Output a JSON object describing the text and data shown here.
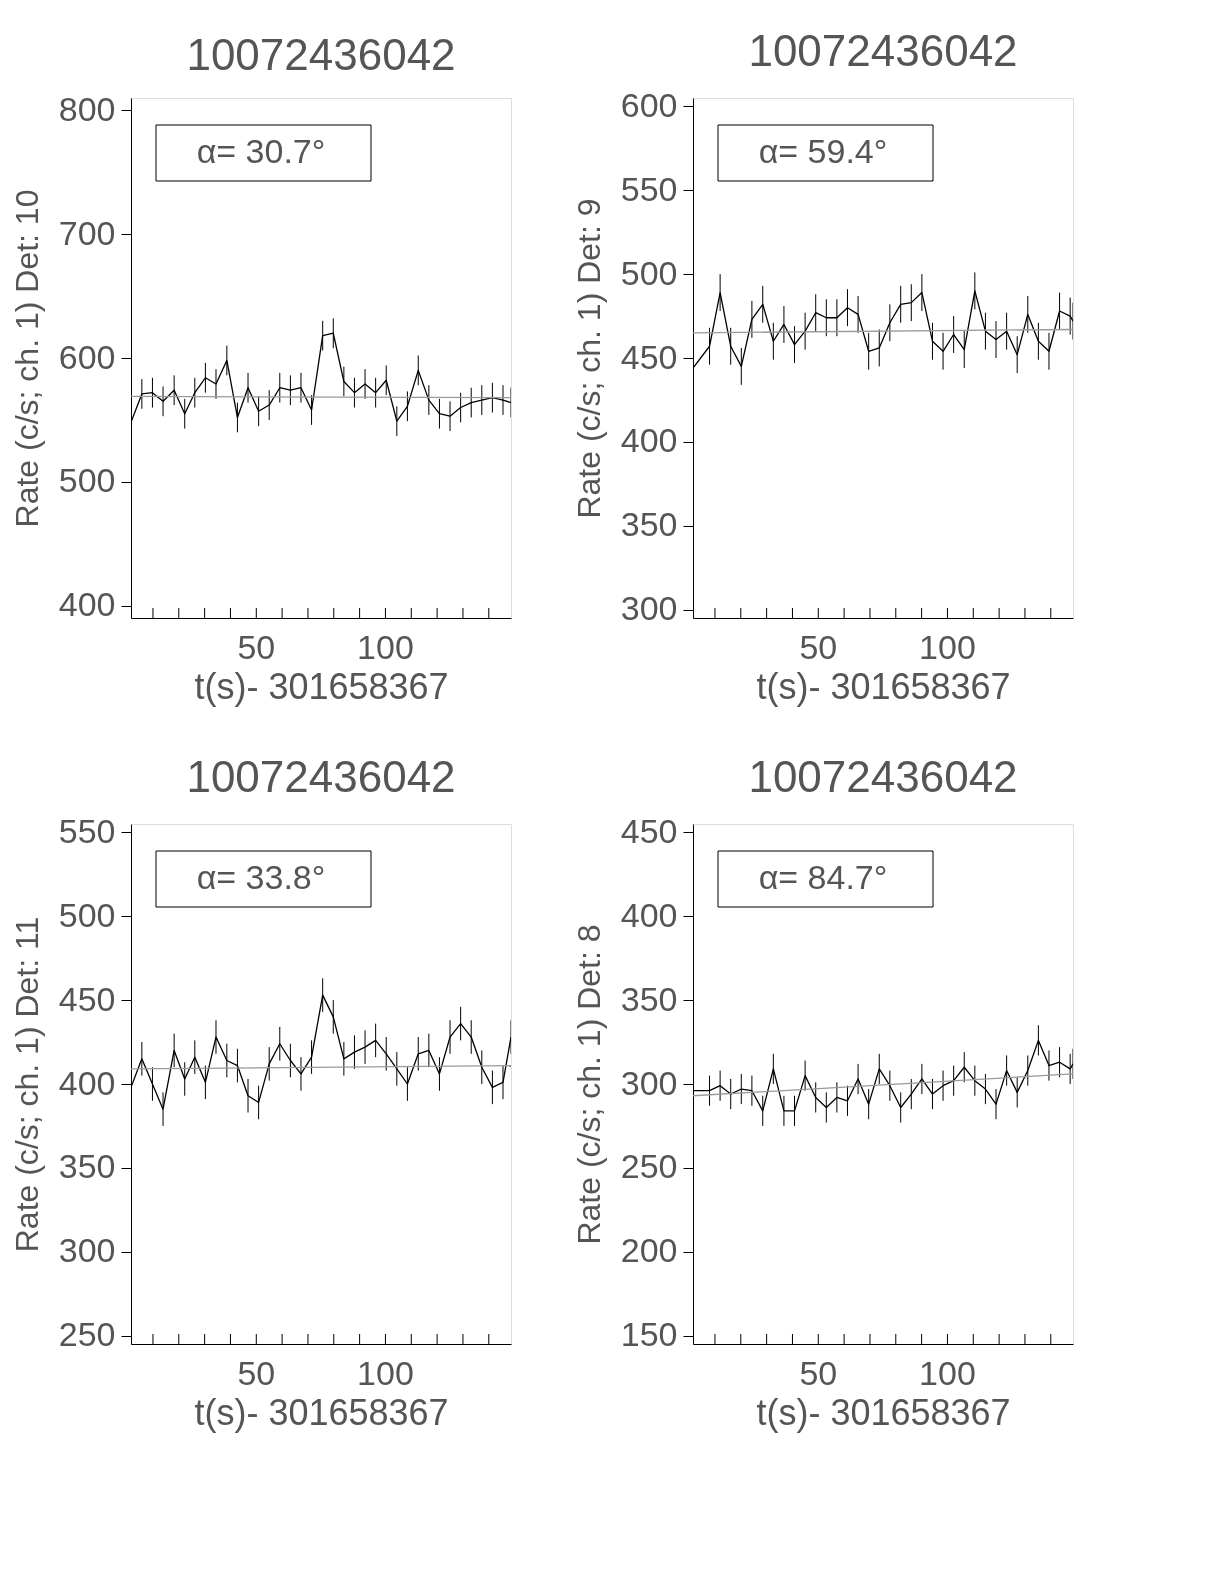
{
  "chart_data": [
    {
      "type": "line",
      "title": "10072436042",
      "xlabel": "t(s)- 301658367",
      "ylabel": "Rate (c/s; ch. 1) Det: 10",
      "annotations": [
        "α= 30.7°"
      ],
      "xlim": [
        1.5,
        148.6
      ],
      "ylim": [
        390,
        810
      ],
      "xticks": [
        {
          "value": 10,
          "label": null
        },
        {
          "value": 20,
          "label": null
        },
        {
          "value": 30,
          "label": null
        },
        {
          "value": 40,
          "label": null
        },
        50,
        {
          "value": 60,
          "label": null
        },
        {
          "value": 70,
          "label": null
        },
        {
          "value": 80,
          "label": null
        },
        {
          "value": 90,
          "label": null
        },
        100,
        {
          "value": 110,
          "label": null
        },
        {
          "value": 120,
          "label": null
        },
        {
          "value": 130,
          "label": null
        },
        {
          "value": 140,
          "label": null
        }
      ],
      "yticks": [
        400,
        500,
        600,
        700,
        800
      ],
      "series": [
        {
          "color": "#000000",
          "x": [
            1.5,
            5.7,
            9.8,
            13.9,
            18.2,
            22.3,
            26.2,
            30.3,
            34.4,
            38.6,
            42.7,
            46.8,
            50.9,
            55.0,
            59.1,
            63.2,
            67.3,
            71.4,
            75.7,
            79.8,
            83.9,
            88.0,
            92.1,
            96.2,
            100.3,
            104.4,
            108.5,
            112.7,
            116.8,
            120.9,
            125.0,
            129.1,
            133.2,
            137.3,
            141.4,
            145.5,
            148.6
          ],
          "values": [
            548,
            571,
            572,
            565,
            574,
            555,
            572,
            584,
            579,
            598,
            552,
            576,
            557,
            562,
            576,
            574,
            576,
            558,
            618,
            620,
            581,
            572,
            579,
            572,
            582,
            549,
            561,
            590,
            566,
            555,
            553,
            560,
            564,
            566,
            568,
            566,
            564
          ],
          "errors": [
            12,
            12,
            12,
            12,
            12,
            12,
            12,
            12,
            12,
            12,
            12,
            12,
            12,
            12,
            12,
            12,
            12,
            12,
            12,
            12,
            12,
            12,
            12,
            12,
            12,
            12,
            12,
            12,
            12,
            12,
            12,
            12,
            12,
            12,
            12,
            12,
            12
          ]
        },
        {
          "type": "line",
          "color": "#999999",
          "x": [
            1.5,
            148.6
          ],
          "values": [
            569,
            568
          ]
        }
      ]
    },
    {
      "type": "line",
      "title": "10072436042",
      "xlabel": "t(s)- 301658367",
      "ylabel": "Rate (c/s; ch. 1) Det: 9",
      "annotations": [
        "α= 59.4°"
      ],
      "xlim": [
        1.5,
        148.6
      ],
      "ylim": [
        295,
        605
      ],
      "xticks": [
        {
          "value": 10,
          "label": null
        },
        {
          "value": 20,
          "label": null
        },
        {
          "value": 30,
          "label": null
        },
        {
          "value": 40,
          "label": null
        },
        50,
        {
          "value": 60,
          "label": null
        },
        {
          "value": 70,
          "label": null
        },
        {
          "value": 80,
          "label": null
        },
        {
          "value": 90,
          "label": null
        },
        100,
        {
          "value": 110,
          "label": null
        },
        {
          "value": 120,
          "label": null
        },
        {
          "value": 130,
          "label": null
        },
        {
          "value": 140,
          "label": null
        }
      ],
      "yticks": [
        300,
        350,
        400,
        450,
        500,
        550,
        600
      ],
      "series": [
        {
          "color": "#000000",
          "x": [
            1.5,
            7.9,
            12.0,
            16.1,
            20.2,
            24.3,
            28.5,
            32.6,
            36.7,
            40.8,
            44.9,
            49.0,
            53.1,
            57.2,
            61.3,
            65.4,
            69.5,
            73.6,
            77.7,
            81.9,
            86.0,
            90.1,
            94.2,
            98.3,
            102.4,
            106.5,
            110.6,
            114.7,
            118.8,
            122.9,
            127.0,
            131.1,
            135.2,
            139.3,
            143.4,
            147.5,
            148.6
          ],
          "values": [
            444,
            457,
            489,
            457,
            445,
            473,
            482,
            460,
            470,
            458,
            466,
            477,
            474,
            474,
            480,
            476,
            454,
            456,
            471,
            482,
            483,
            489,
            460,
            454,
            464,
            455,
            490,
            466,
            461,
            466,
            452,
            476,
            460,
            454,
            478,
            475,
            472
          ],
          "errors": [
            11,
            11,
            11,
            11,
            11,
            11,
            11,
            11,
            11,
            11,
            11,
            11,
            11,
            11,
            11,
            11,
            11,
            11,
            11,
            11,
            11,
            11,
            11,
            11,
            11,
            11,
            11,
            11,
            11,
            11,
            11,
            11,
            11,
            11,
            11,
            11,
            11
          ]
        },
        {
          "type": "line",
          "color": "#999999",
          "x": [
            1.5,
            148.6
          ],
          "values": [
            465,
            467
          ]
        }
      ]
    },
    {
      "type": "line",
      "title": "10072436042",
      "xlabel": "t(s)- 301658367",
      "ylabel": "Rate (c/s; ch. 1) Det: 11",
      "annotations": [
        "α= 33.8°"
      ],
      "xlim": [
        1.5,
        148.6
      ],
      "ylim": [
        245,
        555
      ],
      "xticks": [
        {
          "value": 10,
          "label": null
        },
        {
          "value": 20,
          "label": null
        },
        {
          "value": 30,
          "label": null
        },
        {
          "value": 40,
          "label": null
        },
        50,
        {
          "value": 60,
          "label": null
        },
        {
          "value": 70,
          "label": null
        },
        {
          "value": 80,
          "label": null
        },
        {
          "value": 90,
          "label": null
        },
        100,
        {
          "value": 110,
          "label": null
        },
        {
          "value": 120,
          "label": null
        },
        {
          "value": 130,
          "label": null
        },
        {
          "value": 140,
          "label": null
        }
      ],
      "yticks": [
        250,
        300,
        350,
        400,
        450,
        500,
        550
      ],
      "series": [
        {
          "color": "#000000",
          "x": [
            1.5,
            5.7,
            9.8,
            13.9,
            18.2,
            22.3,
            26.2,
            30.3,
            34.4,
            38.6,
            42.7,
            46.8,
            50.9,
            55.0,
            59.1,
            63.2,
            67.3,
            71.4,
            75.7,
            79.8,
            83.9,
            88.0,
            92.1,
            96.2,
            100.3,
            104.4,
            108.5,
            112.7,
            116.8,
            120.9,
            125.0,
            129.1,
            133.2,
            137.3,
            141.4,
            145.5,
            148.6
          ],
          "values": [
            398,
            415,
            400,
            385,
            420,
            403,
            416,
            401,
            428,
            414,
            411,
            393,
            389,
            412,
            424,
            414,
            406,
            416,
            453,
            440,
            415,
            419,
            422,
            426,
            418,
            409,
            400,
            418,
            420,
            406,
            428,
            436,
            428,
            410,
            398,
            401,
            428
          ],
          "errors": [
            10,
            10,
            10,
            10,
            10,
            10,
            10,
            10,
            10,
            10,
            10,
            10,
            10,
            10,
            10,
            10,
            10,
            10,
            10,
            10,
            10,
            10,
            10,
            10,
            10,
            10,
            10,
            10,
            10,
            10,
            10,
            10,
            10,
            10,
            10,
            10,
            10
          ]
        },
        {
          "type": "line",
          "color": "#999999",
          "x": [
            1.5,
            148.6
          ],
          "values": [
            409,
            411
          ]
        }
      ]
    },
    {
      "type": "line",
      "title": "10072436042",
      "xlabel": "t(s)- 301658367",
      "ylabel": "Rate (c/s; ch. 1) Det: 8",
      "annotations": [
        "α= 84.7°"
      ],
      "xlim": [
        1.5,
        148.6
      ],
      "ylim": [
        145,
        455
      ],
      "xticks": [
        {
          "value": 10,
          "label": null
        },
        {
          "value": 20,
          "label": null
        },
        {
          "value": 30,
          "label": null
        },
        {
          "value": 40,
          "label": null
        },
        50,
        {
          "value": 60,
          "label": null
        },
        {
          "value": 70,
          "label": null
        },
        {
          "value": 80,
          "label": null
        },
        {
          "value": 90,
          "label": null
        },
        100,
        {
          "value": 110,
          "label": null
        },
        {
          "value": 120,
          "label": null
        },
        {
          "value": 130,
          "label": null
        },
        {
          "value": 140,
          "label": null
        }
      ],
      "yticks": [
        150,
        200,
        250,
        300,
        350,
        400,
        450
      ],
      "series": [
        {
          "color": "#000000",
          "x": [
            1.5,
            7.9,
            12.0,
            16.1,
            20.2,
            24.3,
            28.5,
            32.6,
            36.7,
            40.8,
            44.9,
            49.0,
            53.1,
            57.2,
            61.3,
            65.4,
            69.5,
            73.6,
            77.7,
            81.9,
            86.0,
            90.1,
            94.2,
            98.3,
            102.4,
            106.5,
            110.6,
            114.7,
            118.8,
            122.9,
            127.0,
            131.1,
            135.2,
            139.3,
            143.4,
            147.5,
            148.6
          ],
          "values": [
            296,
            296,
            299,
            294,
            297,
            296,
            284,
            309,
            284,
            284,
            305,
            292,
            286,
            292,
            290,
            303,
            288,
            309,
            299,
            286,
            294,
            303,
            294,
            299,
            302,
            310,
            302,
            297,
            288,
            308,
            295,
            308,
            326,
            311,
            313,
            309,
            312
          ],
          "errors": [
            9,
            9,
            9,
            9,
            9,
            9,
            9,
            9,
            9,
            9,
            9,
            9,
            9,
            9,
            9,
            9,
            9,
            9,
            9,
            9,
            9,
            9,
            9,
            9,
            9,
            9,
            9,
            9,
            9,
            9,
            9,
            9,
            9,
            9,
            9,
            9,
            9
          ]
        },
        {
          "type": "line",
          "color": "#999999",
          "x": [
            1.5,
            148.6
          ],
          "values": [
            293,
            306
          ]
        }
      ]
    }
  ]
}
